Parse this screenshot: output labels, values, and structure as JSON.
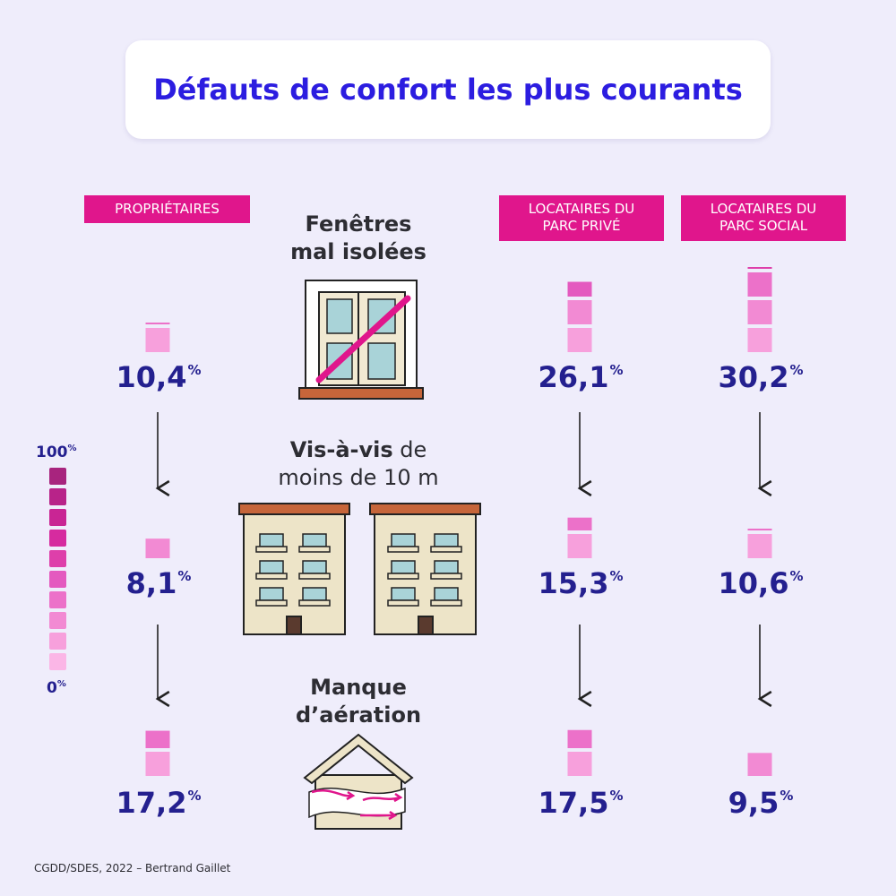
{
  "title": "Défauts de confort les plus courants",
  "source": "CGDD/SDES, 2022 – Bertrand Gaillet",
  "scale": {
    "max_label": "100",
    "min_label": "0",
    "unit": "%"
  },
  "colors": {
    "title": "#2c1de0",
    "label_bg": "#e0168c",
    "value": "#24208f",
    "background": "#efedfb"
  },
  "categories": [
    {
      "line1": "Fenêtres",
      "line2": "mal isolées",
      "icon": "window-icon"
    },
    {
      "line1_bold": "Vis-à-vis",
      "line1_rest": " de",
      "line2": "moins de 10 m",
      "icon": "facing-buildings-icon"
    },
    {
      "line1": "Manque",
      "line2": "d’aération",
      "icon": "house-ventilation-icon"
    }
  ],
  "groups": [
    {
      "line1": "PROPRIÉTAIRES",
      "line2": "",
      "values_text": [
        "10,4",
        "8,1",
        "17,2"
      ]
    },
    {
      "line1": "LOCATAIRES DU",
      "line2": "PARC PRIVÉ",
      "values_text": [
        "26,1",
        "15,3",
        "17,5"
      ]
    },
    {
      "line1": "LOCATAIRES DU",
      "line2": "PARC SOCIAL",
      "values_text": [
        "30,2",
        "10,6",
        "9,5"
      ]
    }
  ],
  "chart_data": {
    "type": "table",
    "title": "Défauts de confort les plus courants",
    "unit": "%",
    "categories": [
      "Fenêtres mal isolées",
      "Vis-à-vis de moins de 10 m",
      "Manque d’aération"
    ],
    "series": [
      {
        "name": "PROPRIÉTAIRES",
        "values": [
          10.4,
          8.1,
          17.2
        ]
      },
      {
        "name": "LOCATAIRES DU PARC PRIVÉ",
        "values": [
          26.1,
          15.3,
          17.5
        ]
      },
      {
        "name": "LOCATAIRES DU PARC SOCIAL",
        "values": [
          30.2,
          10.6,
          9.5
        ]
      }
    ],
    "ylim": [
      0,
      100
    ],
    "scale_steps": 10
  }
}
